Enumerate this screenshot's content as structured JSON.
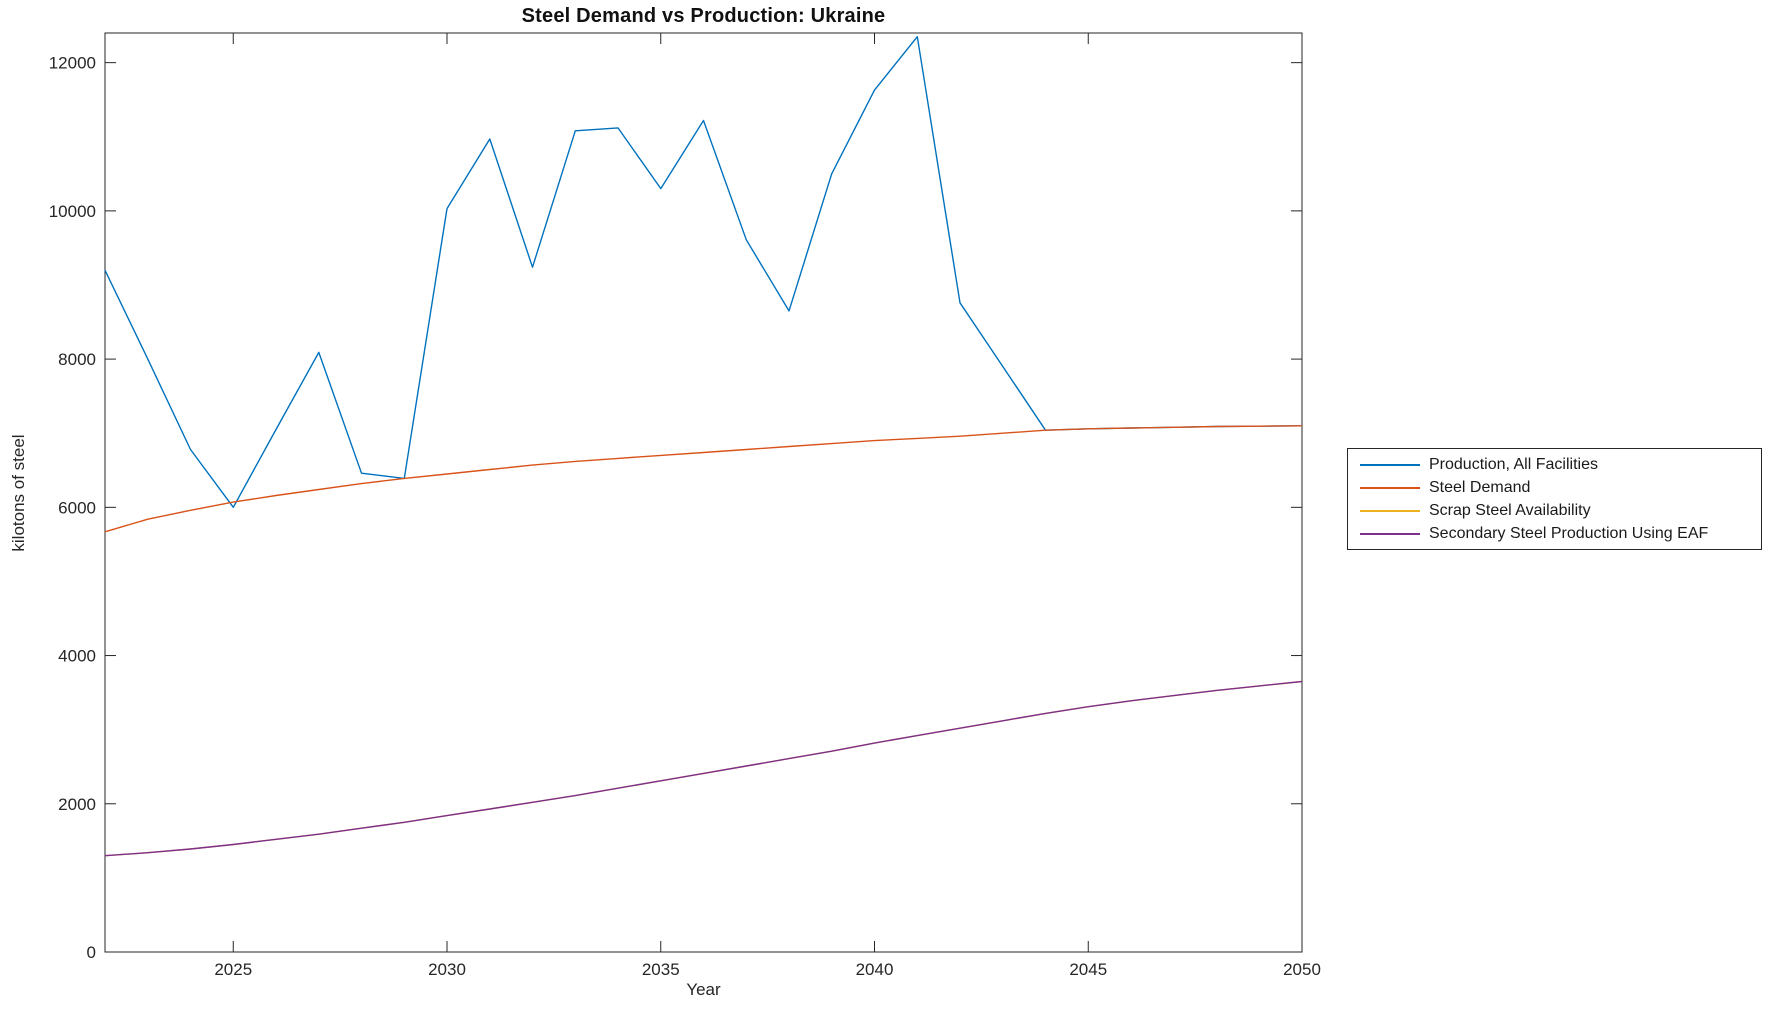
{
  "chart_data": {
    "type": "line",
    "title": "Steel Demand vs Production: Ukraine",
    "xlabel": "Year",
    "ylabel": "kilotons of steel",
    "xlim": [
      2022,
      2050
    ],
    "ylim": [
      0,
      12400
    ],
    "xticks": [
      2025,
      2030,
      2035,
      2040,
      2045,
      2050
    ],
    "yticks": [
      0,
      2000,
      4000,
      6000,
      8000,
      10000,
      12000
    ],
    "grid": false,
    "legend_position": "outside-right",
    "axis_color": "#262626",
    "x": [
      2022,
      2023,
      2024,
      2025,
      2026,
      2027,
      2028,
      2029,
      2030,
      2031,
      2032,
      2033,
      2034,
      2035,
      2036,
      2037,
      2038,
      2039,
      2040,
      2041,
      2042,
      2043,
      2044,
      2045,
      2046,
      2047,
      2048,
      2049,
      2050
    ],
    "series": [
      {
        "name": "Production, All Facilities",
        "color": "#0072BD",
        "values": [
          9200,
          8000,
          6780,
          6000,
          7050,
          8090,
          6460,
          6390,
          10030,
          10970,
          9240,
          11080,
          11120,
          10300,
          11220,
          9610,
          8650,
          10500,
          11630,
          12350,
          8760,
          7900,
          7040,
          7060,
          7070,
          7080,
          7090,
          7095,
          7100
        ]
      },
      {
        "name": "Steel Demand",
        "color": "#D95319",
        "values": [
          5670,
          5840,
          5960,
          6070,
          6160,
          6240,
          6320,
          6390,
          6450,
          6510,
          6570,
          6620,
          6660,
          6700,
          6740,
          6780,
          6820,
          6860,
          6900,
          6930,
          6960,
          7000,
          7040,
          7060,
          7070,
          7080,
          7090,
          7095,
          7100
        ]
      },
      {
        "name": "Scrap Steel Availability",
        "color": "#EDB120",
        "values": [
          1300,
          1340,
          1390,
          1450,
          1520,
          1590,
          1670,
          1750,
          1840,
          1930,
          2020,
          2110,
          2210,
          2310,
          2410,
          2510,
          2610,
          2710,
          2820,
          2920,
          3020,
          3120,
          3220,
          3310,
          3390,
          3460,
          3530,
          3590,
          3650
        ]
      },
      {
        "name": "Secondary Steel Production Using EAF",
        "color": "#7E2F8E",
        "values": [
          1300,
          1340,
          1390,
          1450,
          1520,
          1590,
          1670,
          1750,
          1840,
          1930,
          2020,
          2110,
          2210,
          2310,
          2410,
          2510,
          2610,
          2710,
          2820,
          2920,
          3020,
          3120,
          3220,
          3310,
          3390,
          3460,
          3530,
          3590,
          3650
        ]
      }
    ]
  }
}
